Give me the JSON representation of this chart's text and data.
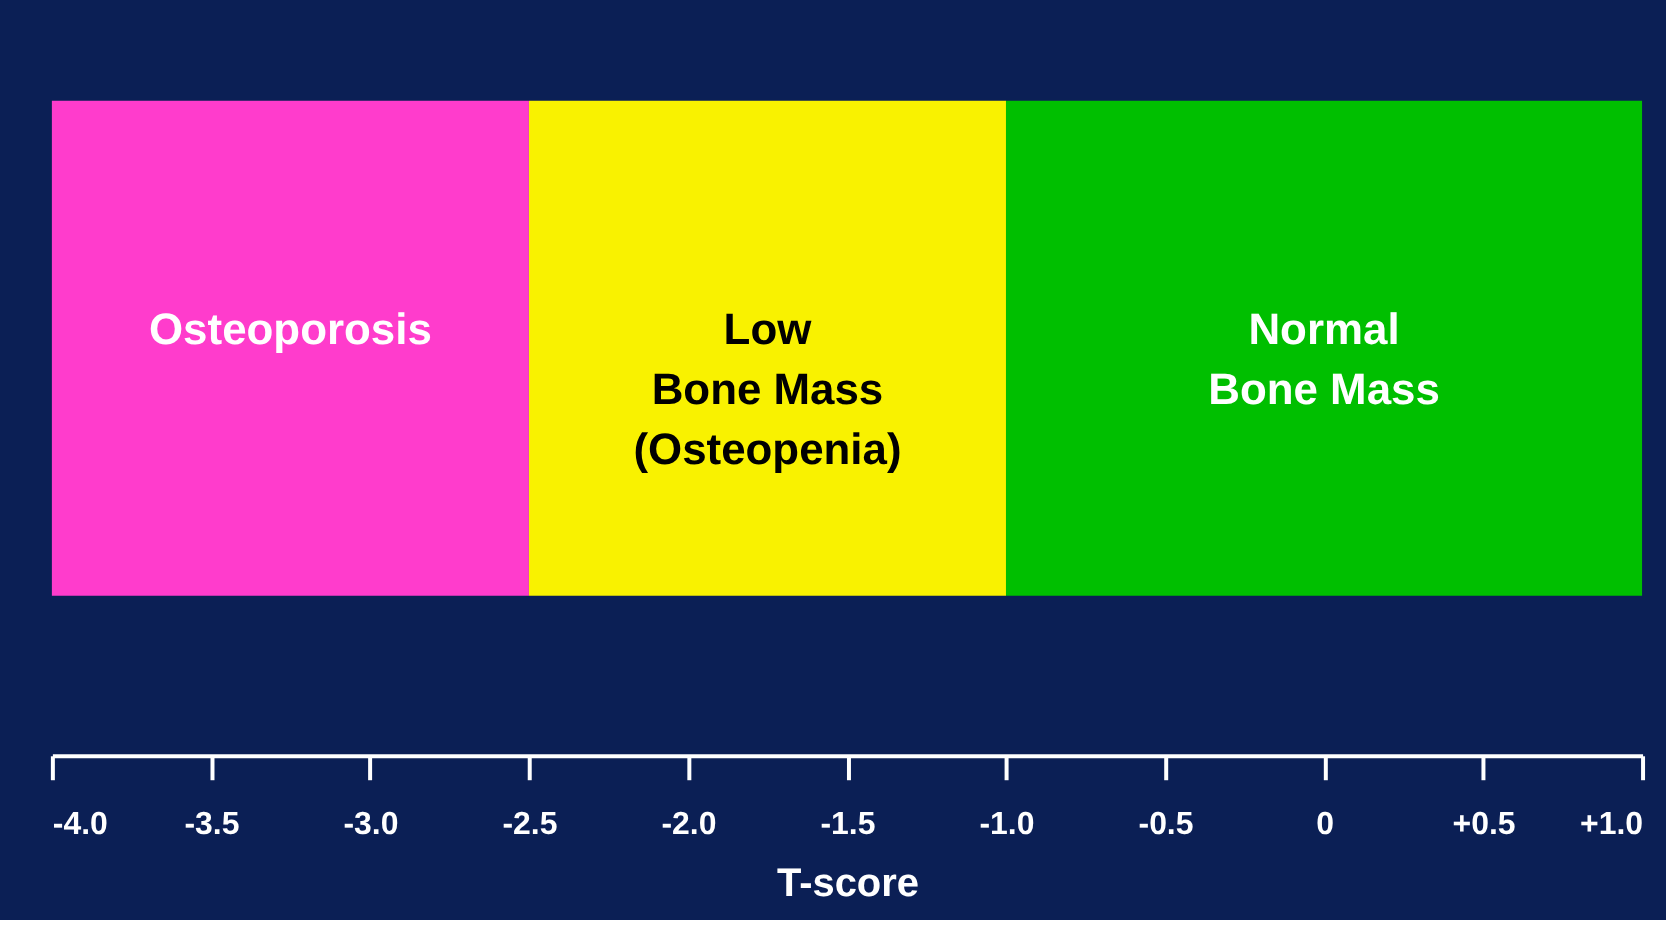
{
  "chart_data": {
    "type": "bar",
    "orientation": "horizontal",
    "xlabel": "T-score",
    "xlim": [
      -4.0,
      1.0
    ],
    "xticks": [
      {
        "value": -4.0,
        "label": "-4.0"
      },
      -3.5,
      {
        "value": -3.0,
        "label": "-3.0"
      },
      -2.5,
      {
        "value": -2.0,
        "label": "-2.0"
      },
      -1.5,
      {
        "value": -1.0,
        "label": "-1.0"
      },
      -0.5,
      0,
      {
        "value": 0.5,
        "label": "+0.5"
      },
      {
        "value": 1.0,
        "label": "+1.0"
      }
    ],
    "categories": [
      null
    ],
    "series": [
      {
        "name": "Osteoporosis",
        "color": "#ff3ccc",
        "base": [
          -4.0
        ],
        "values": [
          1.5
        ]
      },
      {
        "name": "Low\nBone Mass\n(Osteopenia)",
        "color": "#f9f200",
        "base": [
          -2.5
        ],
        "values": [
          1.5
        ]
      },
      {
        "name": "Normal\nBone Mass",
        "color": "#00bf00",
        "base": [
          -1.0
        ],
        "values": [
          2.0
        ]
      }
    ]
  }
}
